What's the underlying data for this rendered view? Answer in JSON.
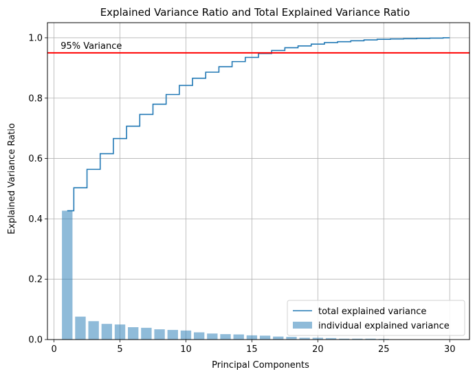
{
  "chart_data": {
    "type": "bar",
    "title": "Explained Variance Ratio and Total Explained Variance Ratio",
    "xlabel": "Principal Components",
    "ylabel": "Explained Variance Ratio",
    "xlim": [
      -0.5,
      31.5
    ],
    "ylim": [
      0,
      1.05
    ],
    "xticks": [
      0,
      5,
      10,
      15,
      20,
      25,
      30
    ],
    "yticks": [
      0.0,
      0.2,
      0.4,
      0.6,
      0.8,
      1.0
    ],
    "grid": true,
    "legend_position": "lower-right",
    "x": [
      1,
      2,
      3,
      4,
      5,
      6,
      7,
      8,
      9,
      10,
      11,
      12,
      13,
      14,
      15,
      16,
      17,
      18,
      19,
      20,
      21,
      22,
      23,
      24,
      25,
      26,
      27,
      28,
      29,
      30
    ],
    "series": [
      {
        "name": "total explained variance",
        "kind": "step",
        "color": "#1f77b4",
        "values": [
          0.427,
          0.503,
          0.564,
          0.616,
          0.666,
          0.707,
          0.746,
          0.78,
          0.812,
          0.842,
          0.866,
          0.886,
          0.904,
          0.921,
          0.935,
          0.948,
          0.958,
          0.967,
          0.973,
          0.979,
          0.984,
          0.987,
          0.99,
          0.993,
          0.995,
          0.996,
          0.997,
          0.998,
          0.999,
          1.0
        ]
      },
      {
        "name": "individual explained variance",
        "kind": "bar",
        "color": "#1f77b4",
        "opacity": 0.5,
        "values": [
          0.427,
          0.076,
          0.061,
          0.052,
          0.05,
          0.041,
          0.039,
          0.034,
          0.032,
          0.03,
          0.024,
          0.02,
          0.018,
          0.017,
          0.014,
          0.013,
          0.01,
          0.009,
          0.006,
          0.006,
          0.005,
          0.003,
          0.003,
          0.003,
          0.002,
          0.001,
          0.001,
          0.001,
          0.001,
          0.0
        ]
      }
    ],
    "reference_line": {
      "y": 0.95,
      "color": "#ff0000",
      "label": "95% Variance"
    }
  }
}
